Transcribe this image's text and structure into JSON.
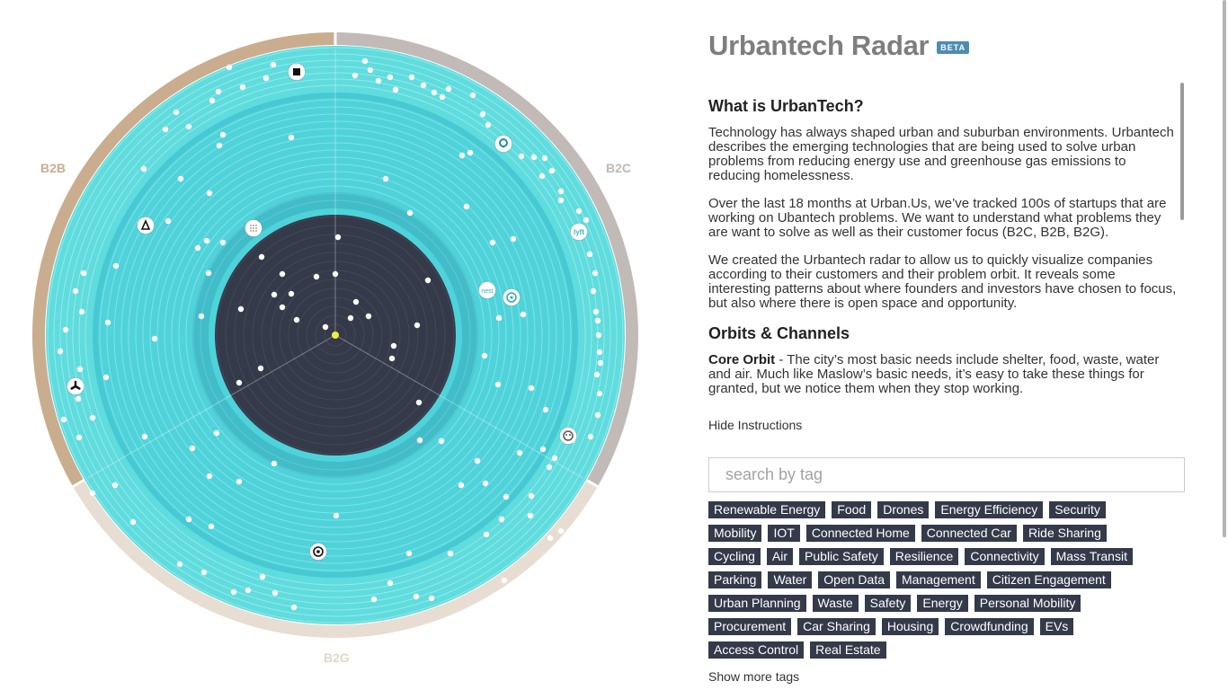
{
  "radar": {
    "sectors": {
      "b2b": "B2B",
      "b2c": "B2C",
      "b2g": "B2G"
    },
    "colors": {
      "core": "#353a4a",
      "ring": "#4fd3da",
      "outer": "#5fdcde",
      "b2b_band": "#c9ad8e",
      "b2c_band": "#c2bab7",
      "b2g_band": "#e8ddd2",
      "center_dot": "#eef03a"
    }
  },
  "panel": {
    "title": "Urbantech Radar",
    "badge": "BETA",
    "sections": {
      "what_heading": "What is UrbanTech?",
      "what_p1": "Technology has always shaped urban and suburban environments. Urbantech describes the emerging technologies that are being used to solve urban problems from reducing energy use and greenhouse gas emissions to reducing homelessness.",
      "what_p2": "Over the last 18 months at Urban.Us, we’ve tracked 100s of startups that are working on Ubantech problems. We want to understand what problems they are want to solve as well as their customer focus (B2C, B2B, B2G).",
      "what_p3": "We created the Urbantech radar to allow us to quickly visualize companies according to their customers and their problem orbit. It reveals some interesting patterns about where founders and investors have chosen to focus, but also where there is open space and opportunity.",
      "orbits_heading": "Orbits & Channels",
      "core_label": "Core Orbit",
      "core_text": " - The city’s most basic needs include shelter, food, waste, water and air. Much like Maslow’s basic needs, it’s easy to take these things for granted, but we notice them when they stop working."
    },
    "hide_instructions": "Hide Instructions",
    "search_placeholder": "search by tag",
    "show_more_tags": "Show more tags",
    "tag_rows": [
      [
        "Renewable Energy",
        "Food",
        "Drones",
        "Energy Efficiency",
        "Security"
      ],
      [
        "Mobility",
        "IOT",
        "Connected Home",
        "Connected Car",
        "Ride Sharing"
      ],
      [
        "Cycling",
        "Air",
        "Public Safety",
        "Resilience",
        "Connectivity",
        "Mass Transit"
      ],
      [
        "Parking",
        "Water",
        "Open Data",
        "Management",
        "Citizen Engagement"
      ],
      [
        "Urban Planning",
        "Waste",
        "Safety",
        "Energy",
        "Personal Mobility"
      ],
      [
        "Procurement",
        "Car Sharing",
        "Housing",
        "Crowdfunding",
        "EVs"
      ],
      [
        "Access Control",
        "Real Estate"
      ]
    ]
  },
  "icons": {
    "logo_black_square": "square-icon",
    "logo_pin": "pin-icon",
    "logo_delta": "delta-icon",
    "logo_grid": "grid-icon",
    "logo_lyft": "lyft-icon",
    "logo_nest": "nest-icon",
    "logo_outlet": "outlet-icon",
    "logo_fan": "fan-icon",
    "logo_robot": "robot-icon",
    "logo_target": "target-icon"
  }
}
